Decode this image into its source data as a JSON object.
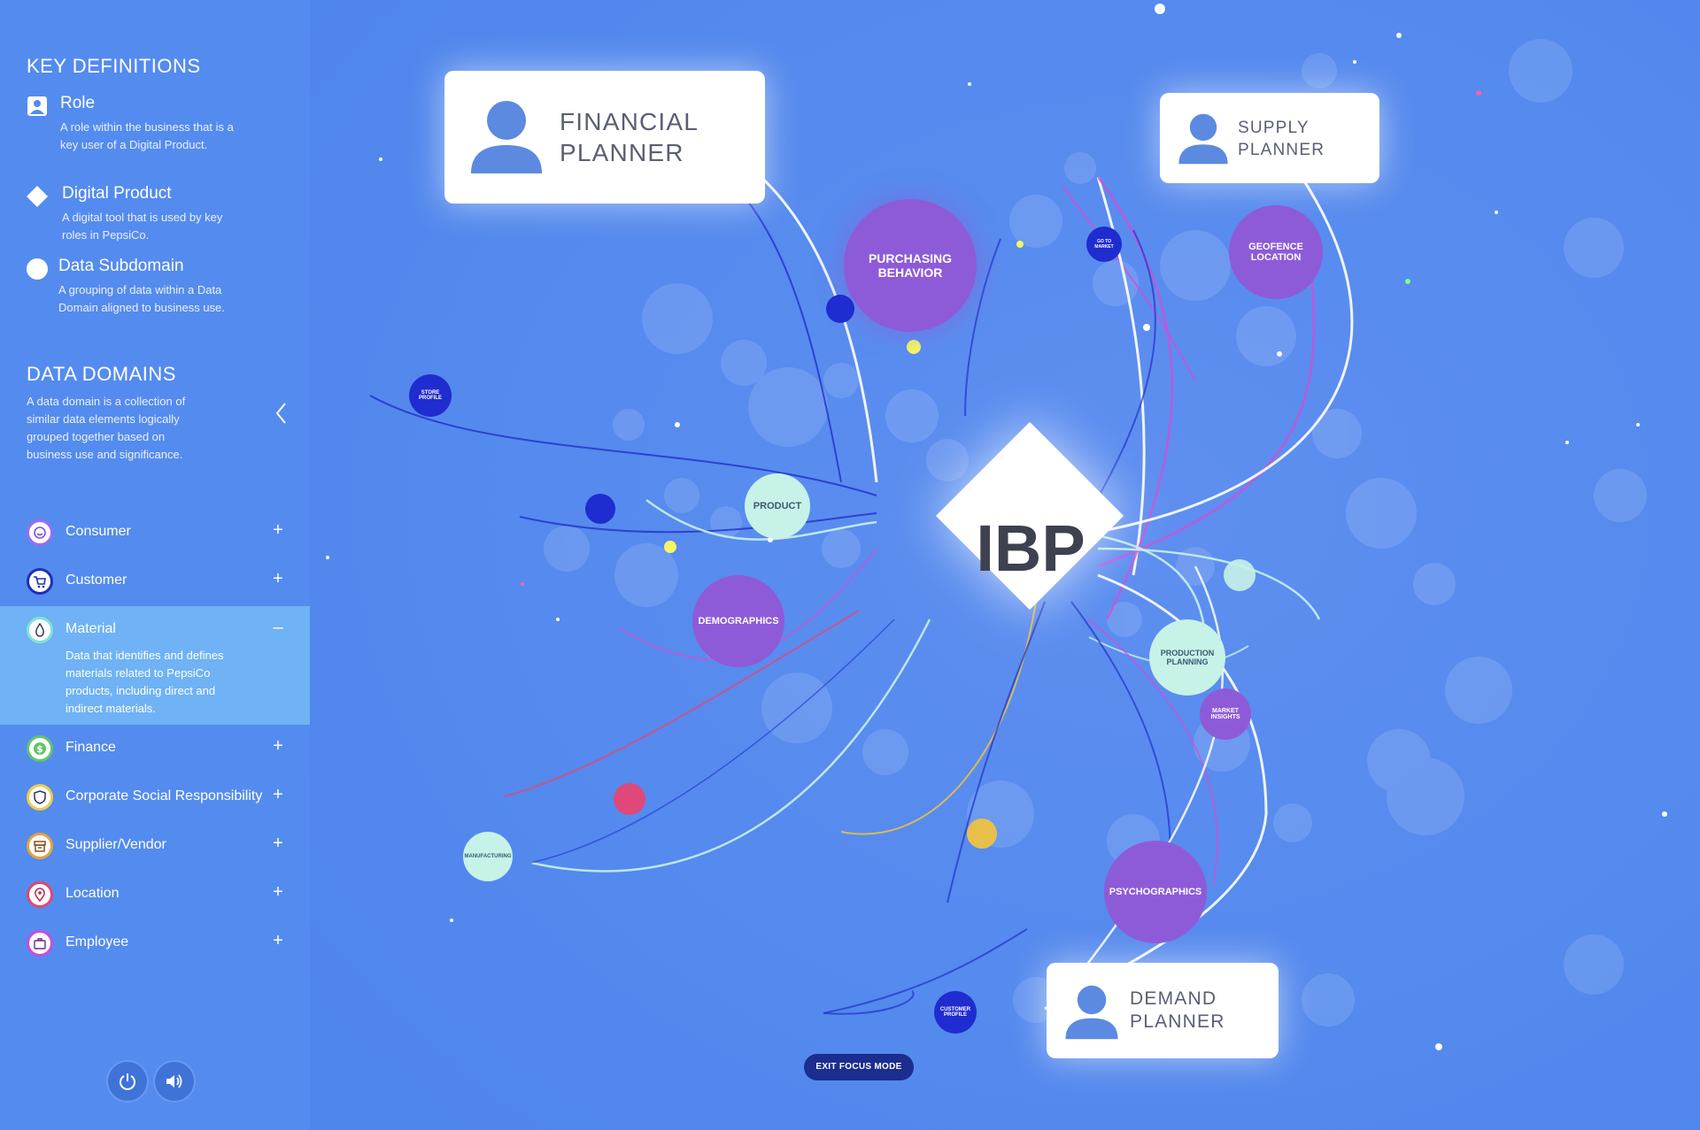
{
  "key_definitions": {
    "title": "KEY DEFINITIONS",
    "items": [
      {
        "name": "Role",
        "description": "A role within the business that is a key user of a Digital Product."
      },
      {
        "name": "Digital Product",
        "description": "A digital tool that is used by key roles in PepsiCo."
      },
      {
        "name": "Data Subdomain",
        "description": "A grouping of data within a Data Domain aligned to business use."
      }
    ]
  },
  "data_domains": {
    "title": "DATA DOMAINS",
    "description": "A data domain is a collection of similar data elements logically grouped together based on business use and significance.",
    "items": [
      {
        "label": "Consumer",
        "toggle": "+",
        "icon": "smile-icon",
        "color": "#8b5cf6"
      },
      {
        "label": "Customer",
        "toggle": "+",
        "icon": "cart-icon",
        "color": "#1e2fb8"
      },
      {
        "label": "Material",
        "toggle": "–",
        "icon": "drop-icon",
        "color": "#7fe3d2",
        "description": "Data that identifies and defines materials related to PepsiCo products, including direct and indirect materials."
      },
      {
        "label": "Finance",
        "toggle": "+",
        "icon": "dollar-icon",
        "color": "#62c46b"
      },
      {
        "label": "Corporate Social Responsibility",
        "toggle": "+",
        "icon": "shield-icon",
        "color": "#f2c94c"
      },
      {
        "label": "Supplier/Vendor",
        "toggle": "+",
        "icon": "box-icon",
        "color": "#e5a33d"
      },
      {
        "label": "Location",
        "toggle": "+",
        "icon": "pin-icon",
        "color": "#e0486e"
      },
      {
        "label": "Employee",
        "toggle": "+",
        "icon": "briefcase-icon",
        "color": "#c44fd8"
      }
    ]
  },
  "controls": {
    "power": "power-icon",
    "sound": "speaker-icon"
  },
  "network": {
    "center": "IBP",
    "roles": {
      "financial": "FINANCIAL PLANNER",
      "supply": "SUPPLY PLANNER",
      "demand": "DEMAND PLANNER"
    },
    "nodes": {
      "purchasing": "PURCHASING BEHAVIOR",
      "geofence": "GEOFENCE LOCATION",
      "product": "PRODUCT",
      "demographics": "DEMOGRAPHICS",
      "production": "PRODUCTION PLANNING",
      "market": "MARKET INSIGHTS",
      "psychographics": "PSYCHOGRAPHICS",
      "store": "STORE PROFILE",
      "manufacturing": "MANUFACTURING",
      "customer_profile": "CUSTOMER PROFILE",
      "go_to_market": "GO TO MARKET"
    },
    "colors": {
      "purple": "#8e5bd8",
      "navy": "#1f2ccf",
      "mint": "#c6f2e8",
      "pink": "#e0487a",
      "gold": "#e6c04a"
    }
  },
  "exit_button": "EXIT FOCUS MODE"
}
